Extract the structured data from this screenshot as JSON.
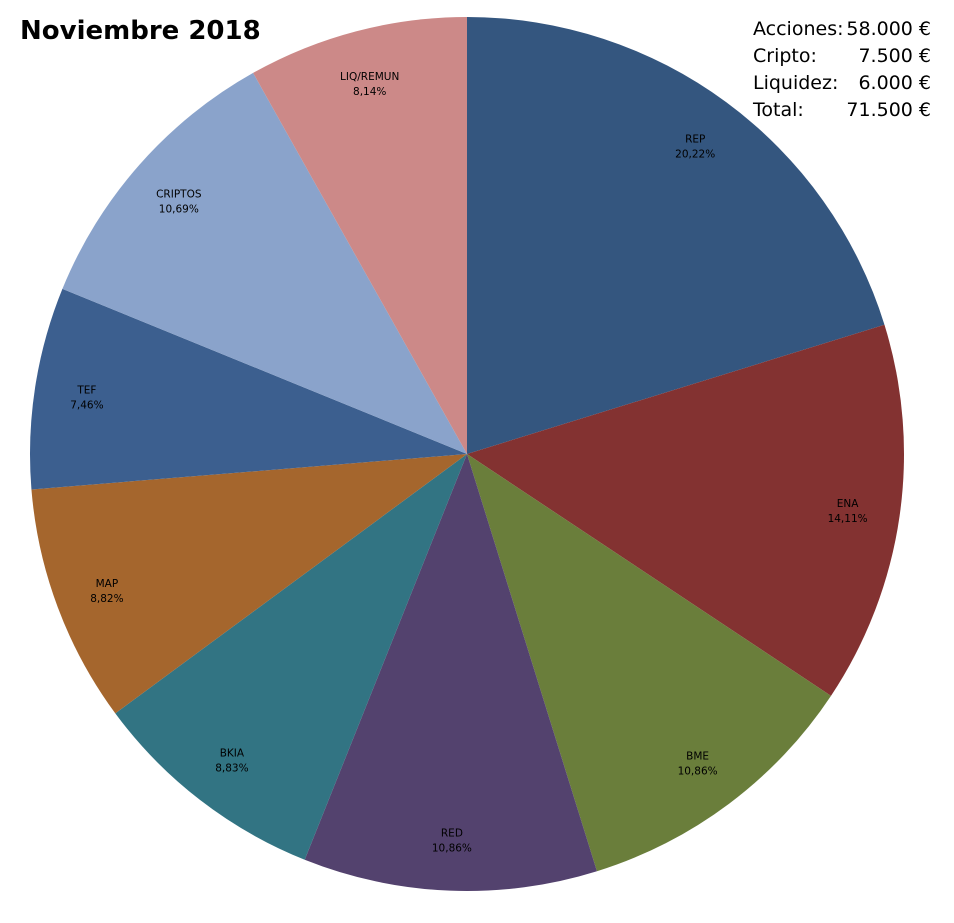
{
  "title": "Noviembre 2018",
  "summary": [
    {
      "label": "Acciones:",
      "value": "58.000 €"
    },
    {
      "label": "Cripto:",
      "value": "7.500 €"
    },
    {
      "label": "Liquidez:",
      "value": "6.000 €"
    },
    {
      "label": "Total:",
      "value": "71.500 €"
    }
  ],
  "chart_data": {
    "type": "pie",
    "title": "Noviembre 2018",
    "start": "12 o'clock",
    "direction": "clockwise",
    "slices": [
      {
        "label": "REP",
        "value": 20.22,
        "display": "20,22%",
        "color": "#34567f"
      },
      {
        "label": "ENA",
        "value": 14.11,
        "display": "14,11%",
        "color": "#833231"
      },
      {
        "label": "BME",
        "value": 10.86,
        "display": "10,86%",
        "color": "#6a7e3b"
      },
      {
        "label": "RED",
        "value": 10.86,
        "display": "10,86%",
        "color": "#53426e"
      },
      {
        "label": "BKIA",
        "value": 8.83,
        "display": "8,83%",
        "color": "#327483"
      },
      {
        "label": "MAP",
        "value": 8.82,
        "display": "8,82%",
        "color": "#a5662d"
      },
      {
        "label": "TEF",
        "value": 7.46,
        "display": "7,46%",
        "color": "#3c5f8f"
      },
      {
        "label": "CRIPTOS",
        "value": 10.69,
        "display": "10,69%",
        "color": "#8aa3cb"
      },
      {
        "label": "LIQ/REMUN",
        "value": 8.14,
        "display": "8,14%",
        "color": "#cc8988"
      }
    ]
  }
}
